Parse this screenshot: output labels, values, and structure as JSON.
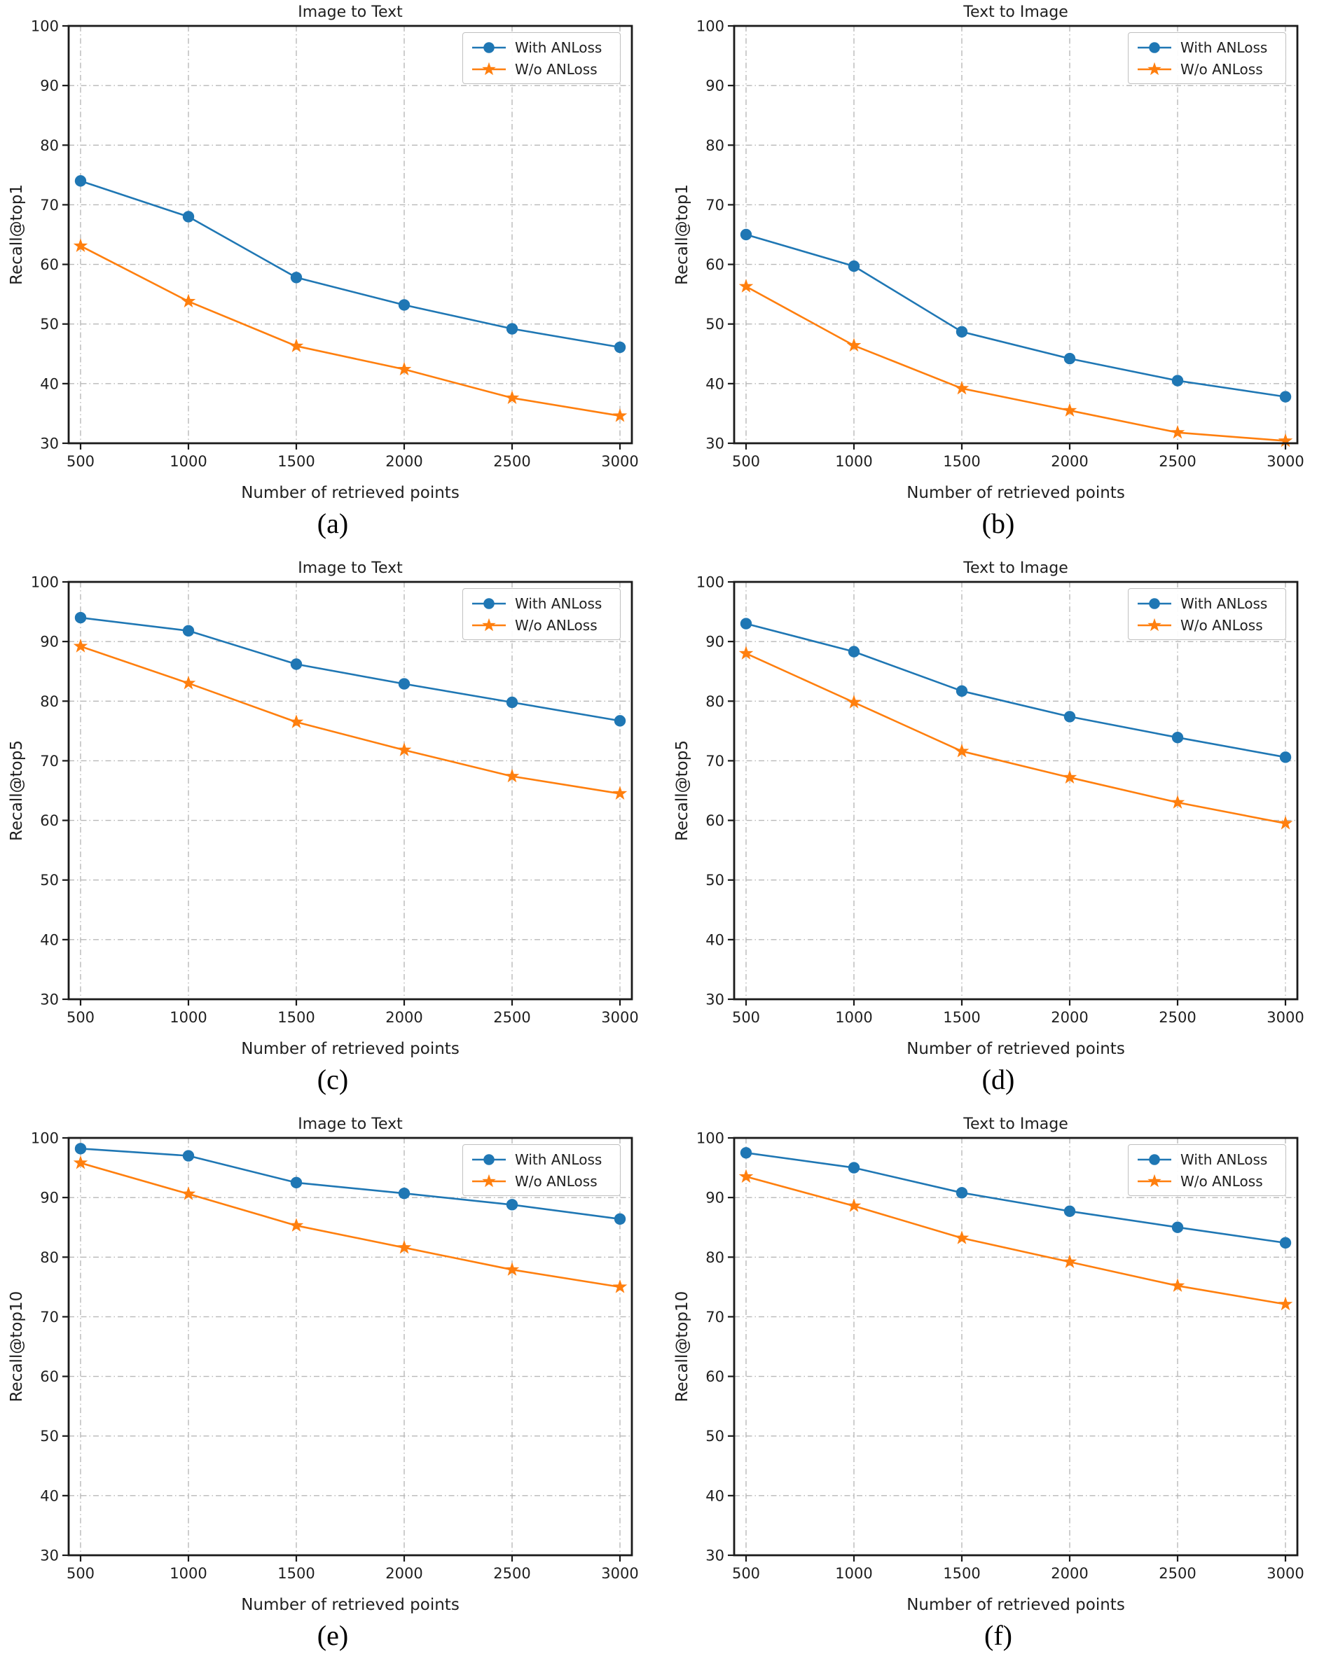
{
  "page": {
    "background": "#ffffff"
  },
  "colors": {
    "with_anloss": "#1f77b4",
    "wo_anloss": "#ff7f0e",
    "grid": "#b8b8b8",
    "spine": "#1a1a1a",
    "text": "#1f1f1f",
    "legend_border": "#c0c0c0"
  },
  "legend": {
    "items": [
      {
        "label": "With ANLoss",
        "marker": "circle-icon",
        "color": "#1f77b4"
      },
      {
        "label": "W/o ANLoss",
        "marker": "star-icon",
        "color": "#ff7f0e"
      }
    ],
    "position": "upper right"
  },
  "chart_data": [
    {
      "id": "a",
      "caption": "(a)",
      "type": "line",
      "title": "Image to Text",
      "xlabel": "Number of retrieved points",
      "ylabel": "Recall@top1",
      "x": [
        500,
        1000,
        1500,
        2000,
        2500,
        3000
      ],
      "xticks": [
        500,
        1000,
        1500,
        2000,
        2500,
        3000
      ],
      "yticks": [
        30,
        40,
        50,
        60,
        70,
        80,
        90,
        100
      ],
      "ylim": [
        30,
        100
      ],
      "grid": true,
      "legend_position": "upper right",
      "series": [
        {
          "name": "With ANLoss",
          "marker": "circle",
          "color": "#1f77b4",
          "values": [
            74.0,
            68.0,
            57.8,
            53.2,
            49.2,
            46.1
          ]
        },
        {
          "name": "W/o ANLoss",
          "marker": "star",
          "color": "#ff7f0e",
          "values": [
            63.1,
            53.8,
            46.3,
            42.4,
            37.6,
            34.6
          ]
        }
      ]
    },
    {
      "id": "b",
      "caption": "(b)",
      "type": "line",
      "title": "Text to Image",
      "xlabel": "Number of retrieved points",
      "ylabel": "Recall@top1",
      "x": [
        500,
        1000,
        1500,
        2000,
        2500,
        3000
      ],
      "xticks": [
        500,
        1000,
        1500,
        2000,
        2500,
        3000
      ],
      "yticks": [
        30,
        40,
        50,
        60,
        70,
        80,
        90,
        100
      ],
      "ylim": [
        30,
        100
      ],
      "grid": true,
      "legend_position": "upper right",
      "series": [
        {
          "name": "With ANLoss",
          "marker": "circle",
          "color": "#1f77b4",
          "values": [
            65.0,
            59.7,
            48.7,
            44.2,
            40.5,
            37.8
          ]
        },
        {
          "name": "W/o ANLoss",
          "marker": "star",
          "color": "#ff7f0e",
          "values": [
            56.3,
            46.4,
            39.2,
            35.5,
            31.8,
            30.4
          ]
        }
      ]
    },
    {
      "id": "c",
      "caption": "(c)",
      "type": "line",
      "title": "Image to Text",
      "xlabel": "Number of retrieved points",
      "ylabel": "Recall@top5",
      "x": [
        500,
        1000,
        1500,
        2000,
        2500,
        3000
      ],
      "xticks": [
        500,
        1000,
        1500,
        2000,
        2500,
        3000
      ],
      "yticks": [
        30,
        40,
        50,
        60,
        70,
        80,
        90,
        100
      ],
      "ylim": [
        30,
        100
      ],
      "grid": true,
      "legend_position": "upper right",
      "series": [
        {
          "name": "With ANLoss",
          "marker": "circle",
          "color": "#1f77b4",
          "values": [
            94.0,
            91.8,
            86.2,
            82.9,
            79.8,
            76.7
          ]
        },
        {
          "name": "W/o ANLoss",
          "marker": "star",
          "color": "#ff7f0e",
          "values": [
            89.2,
            83.0,
            76.5,
            71.8,
            67.4,
            64.5
          ]
        }
      ]
    },
    {
      "id": "d",
      "caption": "(d)",
      "type": "line",
      "title": "Text to Image",
      "xlabel": "Number of retrieved points",
      "ylabel": "Recall@top5",
      "x": [
        500,
        1000,
        1500,
        2000,
        2500,
        3000
      ],
      "xticks": [
        500,
        1000,
        1500,
        2000,
        2500,
        3000
      ],
      "yticks": [
        30,
        40,
        50,
        60,
        70,
        80,
        90,
        100
      ],
      "ylim": [
        30,
        100
      ],
      "grid": true,
      "legend_position": "upper right",
      "series": [
        {
          "name": "With ANLoss",
          "marker": "circle",
          "color": "#1f77b4",
          "values": [
            93.0,
            88.3,
            81.7,
            77.4,
            73.9,
            70.6
          ]
        },
        {
          "name": "W/o ANLoss",
          "marker": "star",
          "color": "#ff7f0e",
          "values": [
            88.0,
            79.8,
            71.6,
            67.2,
            63.0,
            59.5
          ]
        }
      ]
    },
    {
      "id": "e",
      "caption": "(e)",
      "type": "line",
      "title": "Image to Text",
      "xlabel": "Number of retrieved points",
      "ylabel": "Recall@top10",
      "x": [
        500,
        1000,
        1500,
        2000,
        2500,
        3000
      ],
      "xticks": [
        500,
        1000,
        1500,
        2000,
        2500,
        3000
      ],
      "yticks": [
        30,
        40,
        50,
        60,
        70,
        80,
        90,
        100
      ],
      "ylim": [
        30,
        100
      ],
      "grid": true,
      "legend_position": "upper right",
      "series": [
        {
          "name": "With ANLoss",
          "marker": "circle",
          "color": "#1f77b4",
          "values": [
            98.2,
            97.0,
            92.5,
            90.7,
            88.8,
            86.4
          ]
        },
        {
          "name": "W/o ANLoss",
          "marker": "star",
          "color": "#ff7f0e",
          "values": [
            95.8,
            90.6,
            85.3,
            81.6,
            77.9,
            75.0
          ]
        }
      ]
    },
    {
      "id": "f",
      "caption": "(f)",
      "type": "line",
      "title": "Text to Image",
      "xlabel": "Number of retrieved points",
      "ylabel": "Recall@top10",
      "x": [
        500,
        1000,
        1500,
        2000,
        2500,
        3000
      ],
      "xticks": [
        500,
        1000,
        1500,
        2000,
        2500,
        3000
      ],
      "yticks": [
        30,
        40,
        50,
        60,
        70,
        80,
        90,
        100
      ],
      "ylim": [
        30,
        100
      ],
      "grid": true,
      "legend_position": "upper right",
      "series": [
        {
          "name": "With ANLoss",
          "marker": "circle",
          "color": "#1f77b4",
          "values": [
            97.5,
            95.0,
            90.8,
            87.7,
            85.0,
            82.4
          ]
        },
        {
          "name": "W/o ANLoss",
          "marker": "star",
          "color": "#ff7f0e",
          "values": [
            93.5,
            88.6,
            83.2,
            79.2,
            75.2,
            72.1
          ]
        }
      ]
    }
  ]
}
